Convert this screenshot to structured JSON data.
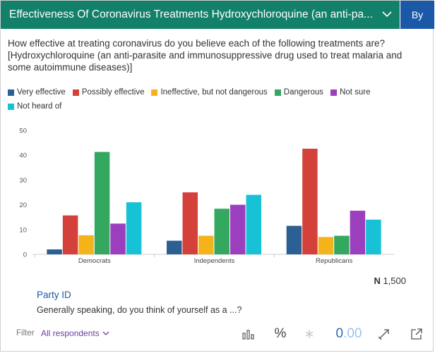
{
  "header": {
    "title": "Effectiveness Of Coronavirus Treatments Hydroxychloroquine (an anti-pa...",
    "by_label": "By"
  },
  "question": "How effective at treating coronavirus do you believe each of the following treatments are? [Hydroxychloroquine (an anti-parasite and immunosuppressive drug used to treat malaria and some autoimmune diseases)]",
  "legend": [
    {
      "label": "Very effective",
      "color": "#2c5f92"
    },
    {
      "label": "Possibly effective",
      "color": "#d4403a"
    },
    {
      "label": "Ineffective, but not dangerous",
      "color": "#f5b31b"
    },
    {
      "label": "Dangerous",
      "color": "#34a85f"
    },
    {
      "label": "Not sure",
      "color": "#9b3fbf"
    },
    {
      "label": "Not heard of",
      "color": "#18c2d6"
    }
  ],
  "chart_data": {
    "type": "bar",
    "categories": [
      "Democrats",
      "Independents",
      "Republicans"
    ],
    "series": [
      {
        "name": "Very effective",
        "values": [
          2,
          5.5,
          11.5
        ]
      },
      {
        "name": "Possibly effective",
        "values": [
          15.7,
          25,
          42.6
        ]
      },
      {
        "name": "Ineffective, but not dangerous",
        "values": [
          7.7,
          7.5,
          7
        ]
      },
      {
        "name": "Dangerous",
        "values": [
          41.3,
          18.4,
          7.5
        ]
      },
      {
        "name": "Not sure",
        "values": [
          12.4,
          20,
          17.6
        ]
      },
      {
        "name": "Not heard of",
        "values": [
          21,
          24,
          14
        ]
      }
    ],
    "ylim": [
      0,
      50
    ],
    "yticks": [
      0,
      10,
      20,
      30,
      40,
      50
    ],
    "legend_position": "top",
    "grid": false
  },
  "sample": {
    "prefix": "N",
    "value": "1,500"
  },
  "variable": {
    "name": "Party ID",
    "question": "Generally speaking, do you think of yourself as a ...?"
  },
  "footer": {
    "filter_label": "Filter",
    "filter_value": "All respondents",
    "percent_symbol": "%",
    "decimal_zero": "0",
    "decimal_rest": ".00"
  }
}
